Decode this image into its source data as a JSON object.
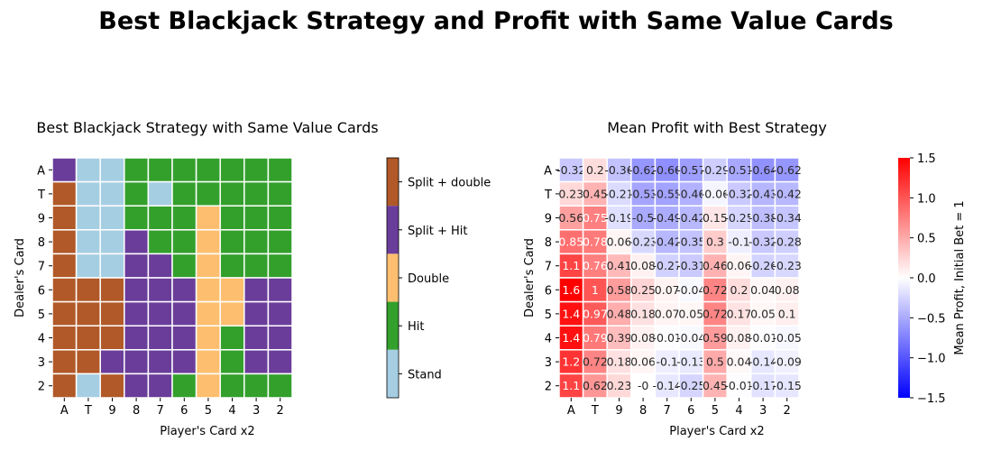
{
  "figure": {
    "suptitle": "Best Blackjack Strategy and Profit with Same Value Cards"
  },
  "chart_data": [
    {
      "type": "heatmap",
      "title": "Best Blackjack Strategy with Same Value Cards",
      "xlabel": "Player's Card x2",
      "ylabel": "Dealer's Card",
      "x_categories": [
        "A",
        "T",
        "9",
        "8",
        "7",
        "6",
        "5",
        "4",
        "3",
        "2"
      ],
      "y_categories": [
        "A",
        "T",
        "9",
        "8",
        "7",
        "6",
        "5",
        "4",
        "3",
        "2"
      ],
      "legend": {
        "type": "discrete-colorbar",
        "placement": "right",
        "categories": [
          {
            "label": "Split + double",
            "color": "#b15928"
          },
          {
            "label": "Split + Hit",
            "color": "#6a3d9a"
          },
          {
            "label": "Double",
            "color": "#fdbf6f"
          },
          {
            "label": "Hit",
            "color": "#33a02c"
          },
          {
            "label": "Stand",
            "color": "#a6cee3"
          }
        ]
      },
      "values": [
        [
          "Split + Hit",
          "Stand",
          "Stand",
          "Hit",
          "Hit",
          "Hit",
          "Hit",
          "Hit",
          "Hit",
          "Hit"
        ],
        [
          "Split + double",
          "Stand",
          "Stand",
          "Hit",
          "Stand",
          "Hit",
          "Hit",
          "Hit",
          "Hit",
          "Hit"
        ],
        [
          "Split + double",
          "Stand",
          "Stand",
          "Hit",
          "Hit",
          "Hit",
          "Double",
          "Hit",
          "Hit",
          "Hit"
        ],
        [
          "Split + double",
          "Stand",
          "Stand",
          "Split + Hit",
          "Hit",
          "Hit",
          "Double",
          "Hit",
          "Hit",
          "Hit"
        ],
        [
          "Split + double",
          "Stand",
          "Stand",
          "Split + Hit",
          "Split + Hit",
          "Hit",
          "Double",
          "Hit",
          "Hit",
          "Hit"
        ],
        [
          "Split + double",
          "Split + double",
          "Split + double",
          "Split + Hit",
          "Split + Hit",
          "Split + Hit",
          "Double",
          "Double",
          "Split + Hit",
          "Split + Hit"
        ],
        [
          "Split + double",
          "Split + double",
          "Split + double",
          "Split + Hit",
          "Split + Hit",
          "Split + Hit",
          "Double",
          "Double",
          "Split + Hit",
          "Split + Hit"
        ],
        [
          "Split + double",
          "Split + double",
          "Split + double",
          "Split + Hit",
          "Split + Hit",
          "Split + Hit",
          "Double",
          "Hit",
          "Split + Hit",
          "Split + Hit"
        ],
        [
          "Split + double",
          "Split + double",
          "Split + Hit",
          "Split + Hit",
          "Split + Hit",
          "Split + Hit",
          "Double",
          "Hit",
          "Split + Hit",
          "Split + Hit"
        ],
        [
          "Split + double",
          "Stand",
          "Split + double",
          "Split + Hit",
          "Split + Hit",
          "Hit",
          "Double",
          "Hit",
          "Hit",
          "Hit"
        ]
      ]
    },
    {
      "type": "heatmap",
      "title": "Mean Profit with Best Strategy",
      "xlabel": "Player's Card x2",
      "ylabel": "Dealer's Card",
      "x_categories": [
        "A",
        "T",
        "9",
        "8",
        "7",
        "6",
        "5",
        "4",
        "3",
        "2"
      ],
      "y_categories": [
        "A",
        "T",
        "9",
        "8",
        "7",
        "6",
        "5",
        "4",
        "3",
        "2"
      ],
      "colorbar": {
        "label": "Mean Profit, Initial Bet = 1",
        "placement": "right",
        "range": [
          -1.5,
          1.5
        ],
        "ticks": [
          "1.5",
          "1.0",
          "0.5",
          "0.0",
          "−0.5",
          "−1.0",
          "−1.5"
        ],
        "tick_values": [
          1.5,
          1.0,
          0.5,
          0.0,
          -0.5,
          -1.0,
          -1.5
        ],
        "colormap": "bwr"
      },
      "values": [
        [
          -0.32,
          0.2,
          -0.36,
          -0.62,
          -0.66,
          -0.57,
          -0.29,
          -0.51,
          -0.64,
          -0.62
        ],
        [
          0.23,
          0.45,
          -0.21,
          -0.53,
          -0.55,
          -0.46,
          -0.06,
          -0.32,
          -0.43,
          -0.42
        ],
        [
          0.56,
          0.75,
          -0.19,
          -0.5,
          -0.49,
          -0.42,
          0.15,
          -0.25,
          -0.38,
          -0.34
        ],
        [
          0.85,
          0.78,
          0.06,
          -0.23,
          -0.42,
          -0.35,
          0.3,
          -0.1,
          -0.32,
          -0.28
        ],
        [
          1.1,
          0.76,
          0.41,
          0.08,
          -0.27,
          -0.31,
          0.46,
          0.06,
          -0.26,
          -0.23
        ],
        [
          1.6,
          1,
          0.58,
          0.25,
          0.07,
          -0.04,
          0.72,
          0.2,
          0.04,
          0.08
        ],
        [
          1.4,
          0.97,
          0.48,
          0.18,
          0.07,
          0.05,
          0.72,
          0.17,
          0.05,
          0.1
        ],
        [
          1.4,
          0.79,
          0.39,
          0.08,
          -0.01,
          -0.04,
          0.59,
          0.08,
          -0.01,
          -0.05
        ],
        [
          1.2,
          0.72,
          0.18,
          0.06,
          -0.1,
          -0.13,
          0.5,
          0.04,
          -0.14,
          -0.09
        ],
        [
          1.1,
          0.62,
          0.23,
          0,
          -0.14,
          -0.25,
          0.45,
          -0.01,
          -0.17,
          -0.15
        ]
      ],
      "labels": [
        [
          "-0.32",
          "0.2",
          "-0.36",
          "-0.62",
          "-0.66",
          "-0.57",
          "-0.29",
          "-0.51",
          "-0.64",
          "-0.62"
        ],
        [
          "0.23",
          "0.45",
          "-0.21",
          "-0.53",
          "-0.55",
          "-0.46",
          "-0.06",
          "-0.32",
          "-0.43",
          "-0.42"
        ],
        [
          "0.56",
          "0.75",
          "-0.19",
          "-0.5",
          "-0.49",
          "-0.42",
          "0.15",
          "-0.25",
          "-0.38",
          "-0.34"
        ],
        [
          "0.85",
          "0.78",
          "0.06",
          "-0.23",
          "-0.42",
          "-0.35",
          "0.3",
          "-0.1",
          "-0.32",
          "-0.28"
        ],
        [
          "1.1",
          "0.76",
          "0.41",
          "0.08",
          "-0.27",
          "-0.31",
          "0.46",
          "0.06",
          "-0.26",
          "-0.23"
        ],
        [
          "1.6",
          "1",
          "0.58",
          "0.25",
          "0.07",
          "-0.04",
          "0.72",
          "0.2",
          "0.04",
          "0.08"
        ],
        [
          "1.4",
          "0.97",
          "0.48",
          "0.18",
          "0.07",
          "0.05",
          "0.72",
          "0.17",
          "0.05",
          "0.1"
        ],
        [
          "1.4",
          "0.79",
          "0.39",
          "0.08",
          "-0.01",
          "-0.04",
          "0.59",
          "0.08",
          "-0.01",
          "-0.05"
        ],
        [
          "1.2",
          "0.72",
          "0.18",
          "0.06",
          "-0.1",
          "-0.13",
          "0.5",
          "0.04",
          "-0.14",
          "-0.09"
        ],
        [
          "1.1",
          "0.62",
          "0.23",
          "-0",
          "-0.14",
          "-0.25",
          "0.45",
          "-0.01",
          "-0.17",
          "-0.15"
        ]
      ]
    }
  ]
}
